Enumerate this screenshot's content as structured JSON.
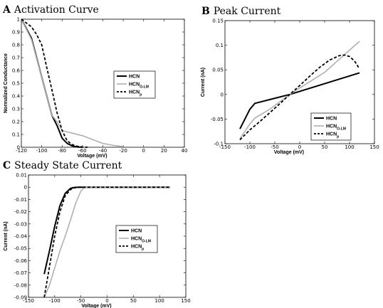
{
  "chart_data": [
    {
      "type": "line",
      "letter": "A",
      "title": "Activation Curve",
      "xlabel": "Voltage (mV)",
      "ylabel": "Normalized Conductance",
      "xlim": [
        -120,
        40
      ],
      "ylim": [
        0,
        1
      ],
      "xticks": [
        -120,
        -100,
        -80,
        -60,
        -40,
        -20,
        0,
        20,
        40
      ],
      "yticks": [
        0,
        0.1,
        0.2,
        0.3,
        0.4,
        0.5,
        0.6,
        0.7,
        0.8,
        0.9,
        1
      ],
      "ytick_labels": [
        "0",
        "0.1",
        "0.2",
        "0.3",
        "0.4",
        "0.5",
        "0.6",
        "0.7",
        "0.8",
        "0.9",
        "1"
      ],
      "grid": false,
      "legend_position": "right",
      "legend": [
        {
          "main": "HCN",
          "sub": ""
        },
        {
          "main": "HCN",
          "sub": "O-LM"
        },
        {
          "main": "HCN",
          "sub": "p"
        }
      ],
      "series": [
        {
          "style": "black-solid",
          "x": [
            -120,
            -110,
            -100,
            -90,
            -85,
            -80,
            -75,
            -70,
            -65,
            -60
          ],
          "y": [
            1,
            0.85,
            0.55,
            0.25,
            0.17,
            0.07,
            0.03,
            0.01,
            0.002,
            0
          ]
        },
        {
          "style": "gray-solid",
          "x": [
            -120,
            -110,
            -100,
            -90,
            -85,
            -80,
            -75,
            -70,
            -60,
            -50,
            -40,
            -30,
            -20
          ],
          "y": [
            1,
            0.84,
            0.55,
            0.25,
            0.2,
            0.13,
            0.12,
            0.11,
            0.09,
            0.06,
            0.03,
            0.015,
            0.005
          ]
        },
        {
          "style": "black-dashed",
          "x": [
            -120,
            -110,
            -105,
            -100,
            -95,
            -90,
            -85,
            -80,
            -75,
            -70,
            -65,
            -60,
            -55
          ],
          "y": [
            1,
            0.94,
            0.88,
            0.8,
            0.62,
            0.45,
            0.27,
            0.13,
            0.05,
            0.02,
            0.007,
            0.002,
            0
          ]
        }
      ]
    },
    {
      "type": "line",
      "letter": "B",
      "title": "Peak Current",
      "xlabel": "Voltage (mV)",
      "ylabel": "Current (nA)",
      "xlim": [
        -150,
        150
      ],
      "ylim": [
        -0.1,
        0.15
      ],
      "xticks": [
        -150,
        -100,
        -50,
        0,
        50,
        100,
        150
      ],
      "yticks": [
        -0.1,
        -0.05,
        0,
        0.05,
        0.1,
        0.15
      ],
      "ytick_labels": [
        "-0.1",
        "-0.05",
        "0",
        "0.05",
        "0.1",
        "0.15"
      ],
      "grid": false,
      "legend_position": "bottom-right",
      "legend": [
        {
          "main": "HCN",
          "sub": ""
        },
        {
          "main": "HCN",
          "sub": "O-LM"
        },
        {
          "main": "HCN",
          "sub": "p"
        }
      ],
      "series": [
        {
          "style": "black-solid",
          "x": [
            -120,
            -110,
            -100,
            -90,
            -20,
            120
          ],
          "y": [
            -0.07,
            -0.05,
            -0.03,
            -0.018,
            0,
            0.044
          ]
        },
        {
          "style": "gray-solid",
          "x": [
            -120,
            -100,
            -90,
            -60,
            -20,
            0,
            50,
            120
          ],
          "y": [
            -0.09,
            -0.06,
            -0.048,
            -0.03,
            0,
            0.013,
            0.045,
            0.108
          ]
        },
        {
          "style": "black-dashed",
          "x": [
            -120,
            -100,
            -80,
            -60,
            -40,
            -20,
            0,
            20,
            40,
            60,
            80,
            90,
            100,
            110,
            120
          ],
          "y": [
            -0.092,
            -0.072,
            -0.055,
            -0.037,
            -0.019,
            0,
            0.018,
            0.037,
            0.055,
            0.07,
            0.079,
            0.08,
            0.077,
            0.068,
            0.052
          ]
        }
      ]
    },
    {
      "type": "line",
      "letter": "C",
      "title": "Steady State Current",
      "xlabel": "Voltage (mV)",
      "ylabel": "Current (nA)",
      "xlim": [
        -150,
        150
      ],
      "ylim": [
        -0.09,
        0.01
      ],
      "xticks": [
        -150,
        -100,
        -50,
        0,
        50,
        100,
        150
      ],
      "yticks": [
        -0.09,
        -0.08,
        -0.07,
        -0.06,
        -0.05,
        -0.04,
        -0.03,
        -0.02,
        -0.01,
        0,
        0.01
      ],
      "ytick_labels": [
        "-0.09",
        "-0.08",
        "-0.07",
        "-0.06",
        "-0.05",
        "-0.04",
        "-0.03",
        "-0.02",
        "-0.01",
        "0",
        "0.01"
      ],
      "grid": false,
      "legend_position": "right",
      "legend": [
        {
          "main": "HCN",
          "sub": ""
        },
        {
          "main": "HCN",
          "sub": "O-LM"
        },
        {
          "main": "HCN",
          "sub": "p"
        }
      ],
      "series": [
        {
          "style": "black-solid",
          "x": [
            -120,
            -110,
            -100,
            -90,
            -80,
            -70,
            -65,
            -60,
            -50,
            120
          ],
          "y": [
            -0.071,
            -0.052,
            -0.032,
            -0.015,
            -0.005,
            -0.001,
            -0.0004,
            -0.0001,
            0,
            0
          ]
        },
        {
          "style": "gray-solid",
          "x": [
            -120,
            -110,
            -100,
            -90,
            -80,
            -70,
            -60,
            -50,
            -45,
            -40,
            120
          ],
          "y": [
            -0.09,
            -0.08,
            -0.066,
            -0.052,
            -0.04,
            -0.027,
            -0.013,
            -0.003,
            -0.001,
            0,
            0
          ]
        },
        {
          "style": "black-dashed",
          "x": [
            -120,
            -110,
            -100,
            -90,
            -80,
            -70,
            -65,
            -60,
            -55,
            120
          ],
          "y": [
            -0.09,
            -0.065,
            -0.04,
            -0.02,
            -0.007,
            -0.002,
            -0.0008,
            -0.0003,
            0,
            0
          ]
        }
      ]
    }
  ]
}
